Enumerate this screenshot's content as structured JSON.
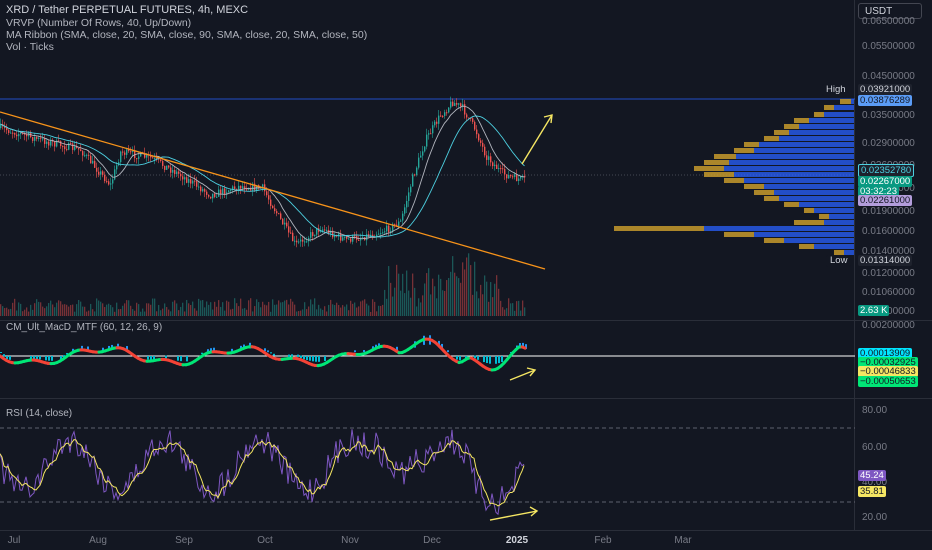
{
  "header": {
    "title": "XRD / Tether PERPETUAL FUTURES, 4h, MEXC",
    "indicators": [
      "VRVP (Number Of Rows, 40, Up/Down)",
      "MA Ribbon (SMA, close, 20, SMA, close, 90, SMA, close, 20, SMA, close, 50)",
      "Vol · Ticks"
    ]
  },
  "currency_button": "USDT",
  "price_axis": {
    "ticks": [
      "0.06500000",
      "0.05500000",
      "0.04500000",
      "0.03500000",
      "0.02900000",
      "0.02600000",
      "0.02200000",
      "0.01900000",
      "0.01600000",
      "0.01400000",
      "0.01200000",
      "0.01060000",
      "0.00900000"
    ],
    "badges": {
      "high_label": "High",
      "high_value": "0.03921000",
      "level_value": "0.03876289",
      "ma_value": "0.02352780",
      "last_price": "0.02267000",
      "countdown": "03:32:23",
      "poc_value": "0.02261000",
      "low_label": "Low",
      "low_value": "0.01314000",
      "volume": "2.63 K"
    },
    "colors": {
      "up": "#26a69a",
      "down": "#ef5350",
      "volume_up": "#2962ff",
      "volume_down": "#c79a2c",
      "trend": "#f7931a",
      "arrow": "#f5e663"
    }
  },
  "macd_pane": {
    "title": "CM_Ult_MacD_MTF (60, 12, 26, 9)",
    "axis_top": "0.00200000",
    "values": [
      "0.00013909",
      "−0.00032925",
      "−0.00046833",
      "−0.00050653"
    ]
  },
  "rsi_pane": {
    "title": "RSI (14, close)",
    "ticks": [
      "80.00",
      "60.00",
      "40.00",
      "20.00"
    ],
    "value_rsi": "45.24",
    "value_ma": "35.81"
  },
  "time_axis": [
    "Jul",
    "Aug",
    "Sep",
    "Oct",
    "Nov",
    "Dec",
    "2025",
    "Feb",
    "Mar"
  ]
}
